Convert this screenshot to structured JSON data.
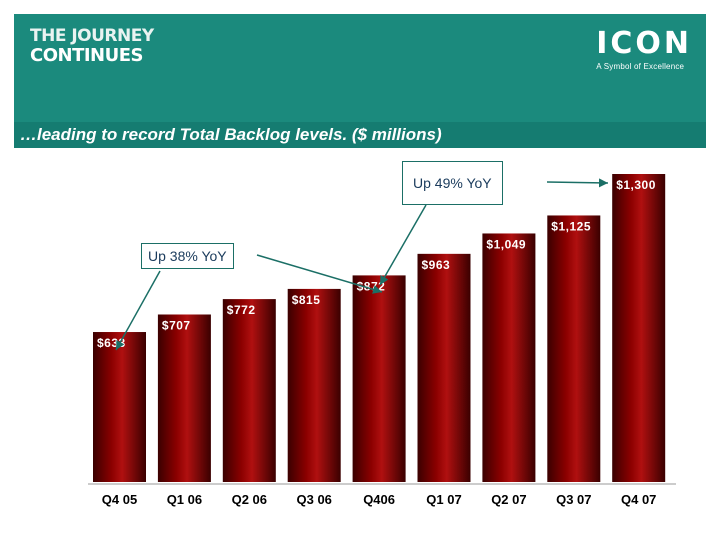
{
  "header": {
    "title_line1": "THE JOURNEY",
    "title_line2": "CONTINUES",
    "logo_text": "ICON",
    "logo_tagline": "A Symbol of Excellence",
    "subtitle": "…leading to record Total Backlog levels.  ($ millions)"
  },
  "colors": {
    "banner": "#1b8a7d",
    "bar": "#8b0000",
    "callout_border": "#1b6f66",
    "arrow": "#1b6f66"
  },
  "callouts": [
    {
      "text": "Up 38% YoY"
    },
    {
      "text": "Up 49% YoY"
    }
  ],
  "chart_data": {
    "type": "bar",
    "title": "",
    "xlabel": "",
    "ylabel": "",
    "categories": [
      "Q4 05",
      "Q1 06",
      "Q2 06",
      "Q3 06",
      "Q406",
      "Q1 07",
      "Q2 07",
      "Q3 07",
      "Q4 07"
    ],
    "values": [
      633,
      707,
      772,
      815,
      872,
      963,
      1049,
      1125,
      1300
    ],
    "value_labels": [
      "$633",
      "$707",
      "$772",
      "$815",
      "$872",
      "$963",
      "$1,049",
      "$1,125",
      "$1,300"
    ],
    "ylim": [
      0,
      1300
    ],
    "grid": false,
    "legend": "none"
  }
}
